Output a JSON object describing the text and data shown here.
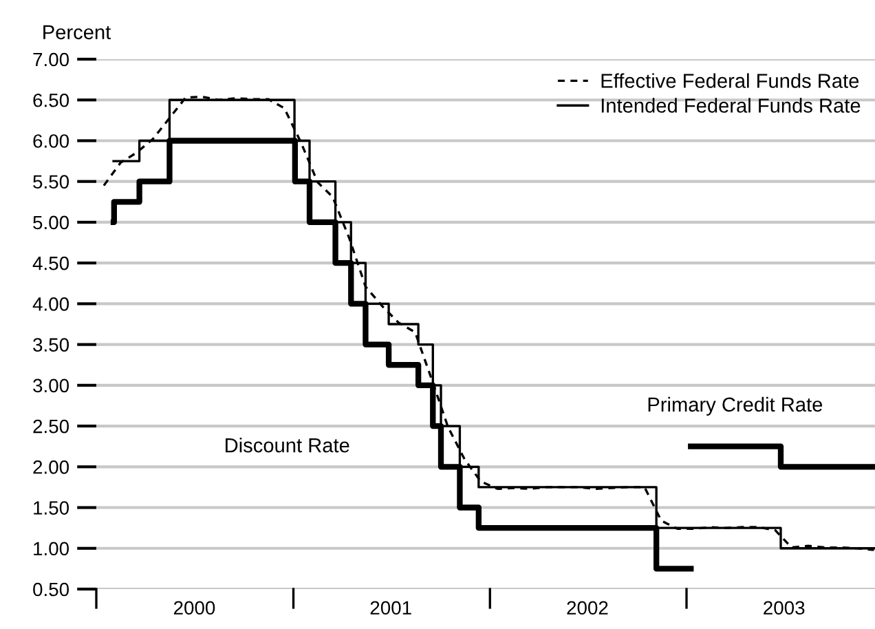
{
  "chart_data": {
    "type": "step",
    "ylabel": "Percent",
    "xlim": [
      "2000-01-01",
      "2003-12-17"
    ],
    "ylim": [
      0.5,
      7.0
    ],
    "yticks": [
      {
        "value": 0.5,
        "label": "0.50"
      },
      {
        "value": 1.0,
        "label": "1.00"
      },
      {
        "value": 1.5,
        "label": "1.50"
      },
      {
        "value": 2.0,
        "label": "2.00"
      },
      {
        "value": 2.5,
        "label": "2.50"
      },
      {
        "value": 3.0,
        "label": "3.00"
      },
      {
        "value": 3.5,
        "label": "3.50"
      },
      {
        "value": 4.0,
        "label": "4.00"
      },
      {
        "value": 4.5,
        "label": "4.50"
      },
      {
        "value": 5.0,
        "label": "5.00"
      },
      {
        "value": 5.5,
        "label": "5.50"
      },
      {
        "value": 6.0,
        "label": "6.00"
      },
      {
        "value": 6.5,
        "label": "6.50"
      },
      {
        "value": 7.0,
        "label": "7.00"
      }
    ],
    "xticks": [
      {
        "value": "2000-01-01",
        "label": null
      },
      {
        "value": "2000-07-01",
        "label": "2000"
      },
      {
        "value": "2001-01-01",
        "label": null
      },
      {
        "value": "2001-07-01",
        "label": "2001"
      },
      {
        "value": "2002-01-01",
        "label": null
      },
      {
        "value": "2002-07-01",
        "label": "2002"
      },
      {
        "value": "2003-01-01",
        "label": null
      },
      {
        "value": "2003-07-01",
        "label": "2003"
      }
    ],
    "grid": "y",
    "legend": "top right",
    "series": [
      {
        "name": "Effective Federal Funds Rate",
        "type": "line",
        "line_style": "dashed",
        "color": "#000000",
        "x": [
          "2000-01-15",
          "2000-02-15",
          "2000-03-15",
          "2000-04-15",
          "2000-05-15",
          "2000-06-15",
          "2000-07-15",
          "2000-08-15",
          "2000-09-15",
          "2000-10-15",
          "2000-11-15",
          "2000-12-15",
          "2001-01-15",
          "2001-02-15",
          "2001-03-15",
          "2001-04-15",
          "2001-05-15",
          "2001-06-15",
          "2001-07-15",
          "2001-08-15",
          "2001-09-15",
          "2001-10-15",
          "2001-11-15",
          "2001-12-15",
          "2002-01-15",
          "2002-02-15",
          "2002-03-15",
          "2002-04-15",
          "2002-05-15",
          "2002-06-15",
          "2002-07-15",
          "2002-08-15",
          "2002-09-15",
          "2002-10-15",
          "2002-11-15",
          "2002-12-15",
          "2003-01-15",
          "2003-02-15",
          "2003-03-15",
          "2003-04-15",
          "2003-05-15",
          "2003-06-15",
          "2003-07-15",
          "2003-08-15",
          "2003-09-15",
          "2003-10-15",
          "2003-11-15",
          "2003-12-15"
        ],
        "values": [
          5.45,
          5.73,
          5.85,
          6.02,
          6.27,
          6.53,
          6.54,
          6.5,
          6.52,
          6.51,
          6.51,
          6.4,
          5.98,
          5.49,
          5.31,
          4.8,
          4.21,
          3.97,
          3.77,
          3.65,
          3.07,
          2.49,
          2.09,
          1.82,
          1.73,
          1.74,
          1.73,
          1.75,
          1.75,
          1.75,
          1.73,
          1.74,
          1.75,
          1.75,
          1.34,
          1.24,
          1.24,
          1.26,
          1.25,
          1.26,
          1.26,
          1.22,
          1.01,
          1.03,
          1.01,
          1.01,
          1.0,
          0.98
        ]
      },
      {
        "name": "Intended Federal Funds Rate",
        "line_style": "solid",
        "color": "#000000",
        "x": [
          "2000-02-02",
          "2000-03-21",
          "2000-05-16",
          "2001-01-03",
          "2001-01-31",
          "2001-03-20",
          "2001-04-18",
          "2001-05-15",
          "2001-06-27",
          "2001-08-21",
          "2001-09-17",
          "2001-10-02",
          "2001-11-06",
          "2001-12-11",
          "2002-11-06",
          "2003-06-25",
          "2003-12-17"
        ],
        "values": [
          5.75,
          6.0,
          6.5,
          6.0,
          5.5,
          5.0,
          4.5,
          4.0,
          3.75,
          3.5,
          3.0,
          2.5,
          2.0,
          1.75,
          1.25,
          1.0,
          1.0
        ]
      },
      {
        "line_style": "solid",
        "color": "#000000",
        "x": [
          "2000-02-02",
          "2000-02-03",
          "2000-03-21",
          "2000-05-16",
          "2001-01-04",
          "2001-01-31",
          "2001-03-20",
          "2001-04-18",
          "2001-05-15",
          "2001-06-27",
          "2001-08-21",
          "2001-09-17",
          "2001-10-02",
          "2001-11-06",
          "2001-12-11",
          "2002-11-06",
          "2003-01-09"
        ],
        "values": [
          5.0,
          5.25,
          5.5,
          6.0,
          5.5,
          5.0,
          4.5,
          4.0,
          3.5,
          3.25,
          3.0,
          2.5,
          2.0,
          1.5,
          1.25,
          0.75,
          0.75
        ]
      },
      {
        "line_style": "solid",
        "color": "#000000",
        "x": [
          "2003-01-09",
          "2003-06-25",
          "2003-12-17"
        ],
        "values": [
          2.25,
          2.0,
          2.0
        ]
      }
    ],
    "annotations": [
      "Discount Rate",
      "Primary Credit Rate"
    ]
  }
}
